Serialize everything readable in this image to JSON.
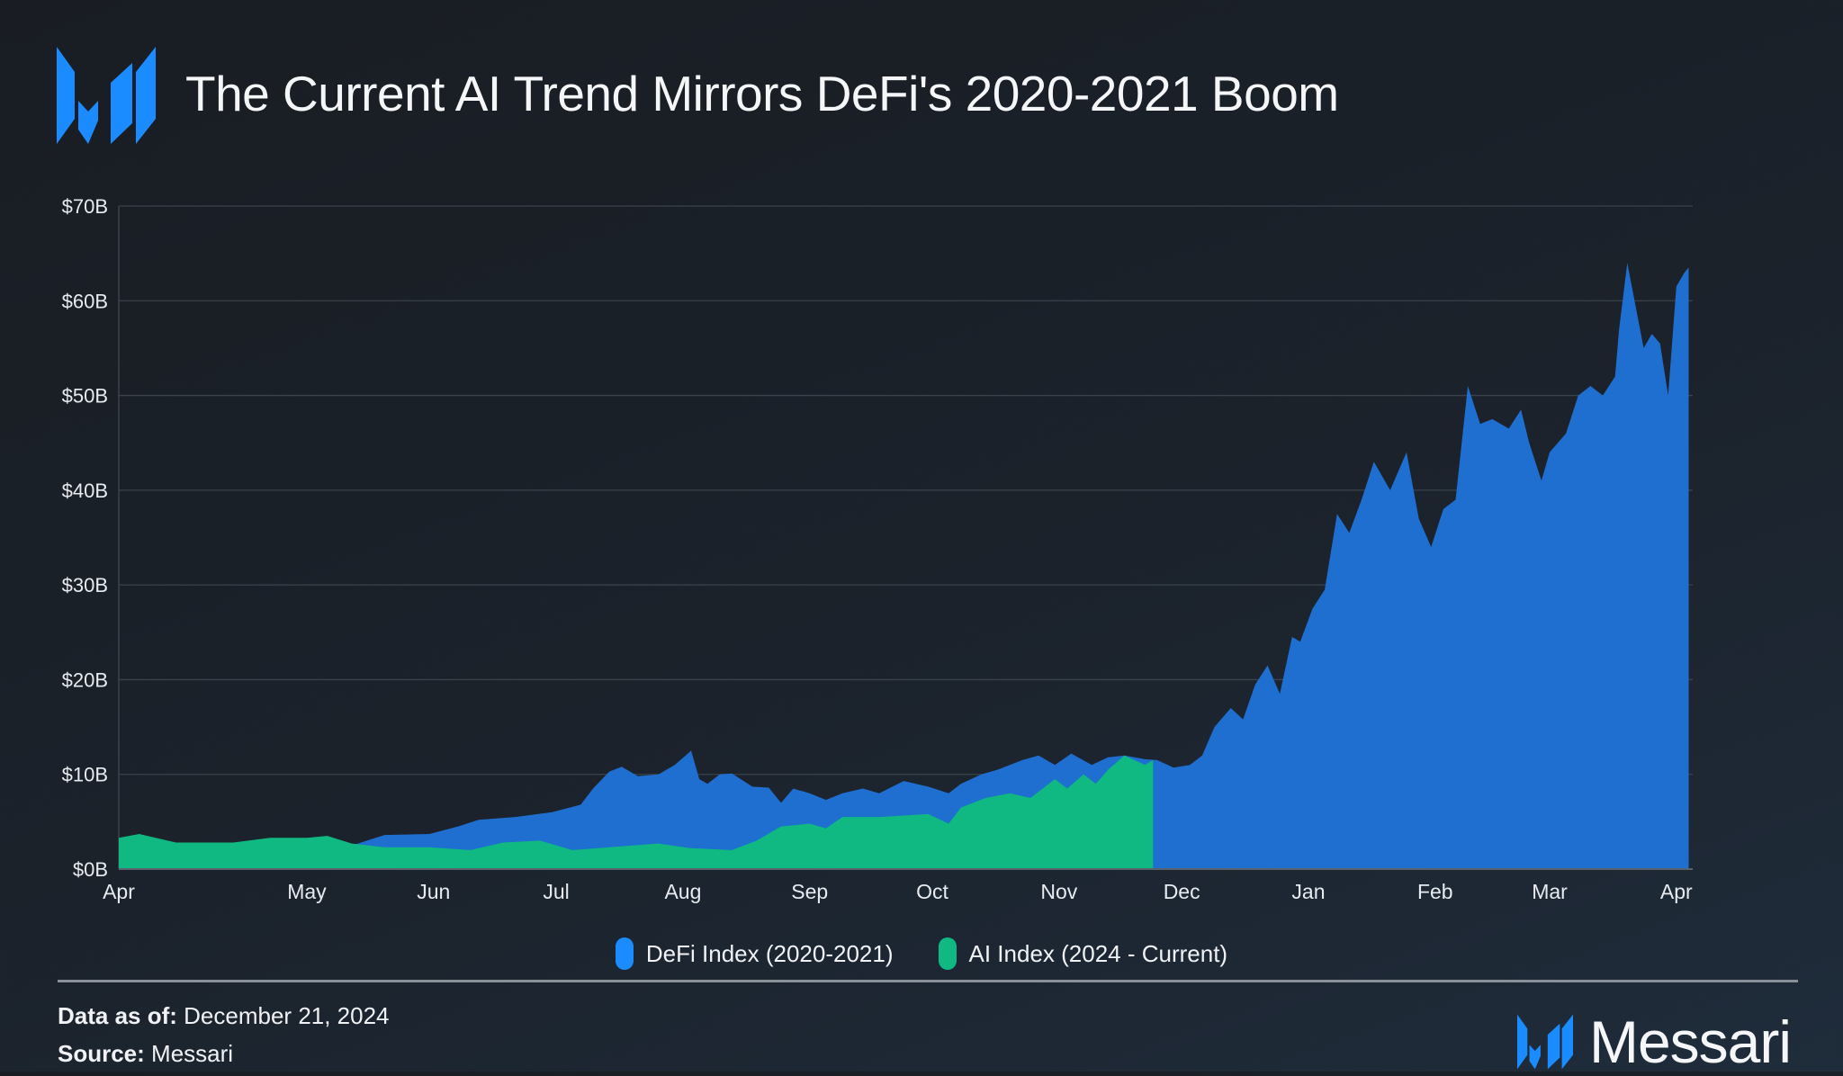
{
  "header": {
    "title": "The Current AI Trend Mirrors DeFi's 2020-2021 Boom",
    "logo_text": "Messari"
  },
  "colors": {
    "defi": "#1e6fd0",
    "ai": "#10b981",
    "legend_defi": "#1a8cff",
    "legend_ai": "#10b981",
    "grid": "#3a424c"
  },
  "chart_data": {
    "type": "area",
    "title": "The Current AI Trend Mirrors DeFi's 2020-2021 Boom",
    "xlabel": "",
    "ylabel": "",
    "xlim": [
      "2020-03-16",
      "2021-04-05"
    ],
    "ylim": [
      0,
      70
    ],
    "grid": true,
    "legend_placement": "bottom",
    "y_ticks": [
      {
        "value": 0,
        "label": "$0B"
      },
      {
        "value": 10,
        "label": "$10B"
      },
      {
        "value": 20,
        "label": "$20B"
      },
      {
        "value": 30,
        "label": "$30B"
      },
      {
        "value": 40,
        "label": "$40B"
      },
      {
        "value": 50,
        "label": "$50B"
      },
      {
        "value": 60,
        "label": "$60B"
      },
      {
        "value": 70,
        "label": "$70B"
      }
    ],
    "x_ticks": [
      {
        "date": "2020-03-16",
        "label": "Apr"
      },
      {
        "date": "2020-05-01",
        "label": "May"
      },
      {
        "date": "2020-06-01",
        "label": "Jun"
      },
      {
        "date": "2020-07-01",
        "label": "Jul"
      },
      {
        "date": "2020-08-01",
        "label": "Aug"
      },
      {
        "date": "2020-09-01",
        "label": "Sep"
      },
      {
        "date": "2020-10-01",
        "label": "Oct"
      },
      {
        "date": "2020-11-01",
        "label": "Nov"
      },
      {
        "date": "2020-12-01",
        "label": "Dec"
      },
      {
        "date": "2021-01-01",
        "label": "Jan"
      },
      {
        "date": "2021-02-01",
        "label": "Feb"
      },
      {
        "date": "2021-03-01",
        "label": "Mar"
      },
      {
        "date": "2021-04-01",
        "label": "Apr"
      }
    ],
    "series": [
      {
        "name": "DeFi Index (2020-2021)",
        "points": [
          [
            "2020-03-16",
            2.3
          ],
          [
            "2020-03-30",
            2.2
          ],
          [
            "2020-04-13",
            2.3
          ],
          [
            "2020-05-01",
            2.4
          ],
          [
            "2020-05-12",
            2.5
          ],
          [
            "2020-05-20",
            3.6
          ],
          [
            "2020-05-31",
            3.7
          ],
          [
            "2020-06-07",
            4.5
          ],
          [
            "2020-06-12",
            5.2
          ],
          [
            "2020-06-21",
            5.5
          ],
          [
            "2020-06-30",
            6.0
          ],
          [
            "2020-07-07",
            6.8
          ],
          [
            "2020-07-10",
            8.5
          ],
          [
            "2020-07-14",
            10.3
          ],
          [
            "2020-07-17",
            10.8
          ],
          [
            "2020-07-21",
            9.8
          ],
          [
            "2020-07-26",
            10.0
          ],
          [
            "2020-07-30",
            11.0
          ],
          [
            "2020-08-03",
            12.5
          ],
          [
            "2020-08-05",
            9.5
          ],
          [
            "2020-08-07",
            9.0
          ],
          [
            "2020-08-10",
            10.0
          ],
          [
            "2020-08-13",
            10.1
          ],
          [
            "2020-08-18",
            8.7
          ],
          [
            "2020-08-22",
            8.6
          ],
          [
            "2020-08-25",
            7.0
          ],
          [
            "2020-08-28",
            8.5
          ],
          [
            "2020-09-01",
            8.0
          ],
          [
            "2020-09-05",
            7.3
          ],
          [
            "2020-09-09",
            8.0
          ],
          [
            "2020-09-14",
            8.5
          ],
          [
            "2020-09-18",
            8.0
          ],
          [
            "2020-09-24",
            9.3
          ],
          [
            "2020-09-30",
            8.7
          ],
          [
            "2020-10-05",
            8.0
          ],
          [
            "2020-10-08",
            9.0
          ],
          [
            "2020-10-13",
            10.0
          ],
          [
            "2020-10-17",
            10.5
          ],
          [
            "2020-10-23",
            11.5
          ],
          [
            "2020-10-27",
            12.0
          ],
          [
            "2020-10-31",
            11.0
          ],
          [
            "2020-11-04",
            12.2
          ],
          [
            "2020-11-09",
            11.0
          ],
          [
            "2020-11-13",
            11.8
          ],
          [
            "2020-11-17",
            12.0
          ],
          [
            "2020-11-22",
            11.6
          ],
          [
            "2020-11-25",
            11.5
          ],
          [
            "2020-11-29",
            10.7
          ],
          [
            "2020-12-03",
            11.0
          ],
          [
            "2020-12-06",
            12.0
          ],
          [
            "2020-12-09",
            15.0
          ],
          [
            "2020-12-13",
            17.0
          ],
          [
            "2020-12-16",
            15.8
          ],
          [
            "2020-12-19",
            19.5
          ],
          [
            "2020-12-22",
            21.5
          ],
          [
            "2020-12-25",
            18.5
          ],
          [
            "2020-12-28",
            24.5
          ],
          [
            "2020-12-30",
            24.0
          ],
          [
            "2021-01-02",
            27.5
          ],
          [
            "2021-01-05",
            29.5
          ],
          [
            "2021-01-08",
            37.5
          ],
          [
            "2021-01-11",
            35.5
          ],
          [
            "2021-01-14",
            39.0
          ],
          [
            "2021-01-17",
            43.0
          ],
          [
            "2021-01-21",
            40.0
          ],
          [
            "2021-01-25",
            44.0
          ],
          [
            "2021-01-28",
            37.0
          ],
          [
            "2021-01-31",
            34.0
          ],
          [
            "2021-02-03",
            38.0
          ],
          [
            "2021-02-06",
            39.0
          ],
          [
            "2021-02-09",
            51.0
          ],
          [
            "2021-02-12",
            47.0
          ],
          [
            "2021-02-15",
            47.5
          ],
          [
            "2021-02-19",
            46.5
          ],
          [
            "2021-02-22",
            48.5
          ],
          [
            "2021-02-24",
            45.0
          ],
          [
            "2021-02-27",
            41.0
          ],
          [
            "2021-03-01",
            44.0
          ],
          [
            "2021-03-05",
            46.0
          ],
          [
            "2021-03-08",
            50.0
          ],
          [
            "2021-03-11",
            51.0
          ],
          [
            "2021-03-14",
            50.0
          ],
          [
            "2021-03-17",
            52.0
          ],
          [
            "2021-03-18",
            57.0
          ],
          [
            "2021-03-20",
            64.0
          ],
          [
            "2021-03-24",
            55.0
          ],
          [
            "2021-03-26",
            56.5
          ],
          [
            "2021-03-28",
            55.5
          ],
          [
            "2021-03-30",
            50.0
          ],
          [
            "2021-04-01",
            61.5
          ],
          [
            "2021-04-03",
            63.0
          ],
          [
            "2021-04-04",
            63.5
          ]
        ]
      },
      {
        "name": "AI Index (2024 - Current)",
        "points": [
          [
            "2020-03-16",
            3.3
          ],
          [
            "2020-03-21",
            3.7
          ],
          [
            "2020-03-30",
            2.8
          ],
          [
            "2020-04-13",
            2.8
          ],
          [
            "2020-04-22",
            3.3
          ],
          [
            "2020-05-01",
            3.3
          ],
          [
            "2020-05-06",
            3.5
          ],
          [
            "2020-05-12",
            2.7
          ],
          [
            "2020-05-20",
            2.3
          ],
          [
            "2020-05-31",
            2.3
          ],
          [
            "2020-06-10",
            2.0
          ],
          [
            "2020-06-18",
            2.8
          ],
          [
            "2020-06-27",
            3.0
          ],
          [
            "2020-07-05",
            2.0
          ],
          [
            "2020-07-14",
            2.3
          ],
          [
            "2020-07-26",
            2.7
          ],
          [
            "2020-08-03",
            2.2
          ],
          [
            "2020-08-13",
            2.0
          ],
          [
            "2020-08-19",
            3.0
          ],
          [
            "2020-08-25",
            4.5
          ],
          [
            "2020-09-01",
            4.8
          ],
          [
            "2020-09-05",
            4.3
          ],
          [
            "2020-09-09",
            5.5
          ],
          [
            "2020-09-18",
            5.5
          ],
          [
            "2020-09-30",
            5.8
          ],
          [
            "2020-10-05",
            4.8
          ],
          [
            "2020-10-08",
            6.5
          ],
          [
            "2020-10-14",
            7.5
          ],
          [
            "2020-10-20",
            8.0
          ],
          [
            "2020-10-25",
            7.5
          ],
          [
            "2020-10-31",
            9.5
          ],
          [
            "2020-11-03",
            8.5
          ],
          [
            "2020-11-07",
            10.0
          ],
          [
            "2020-11-10",
            9.0
          ],
          [
            "2020-11-13",
            10.5
          ],
          [
            "2020-11-17",
            12.0
          ],
          [
            "2020-11-22",
            11.0
          ],
          [
            "2020-11-24",
            11.5
          ]
        ]
      }
    ]
  },
  "legend": [
    {
      "label": "DeFi Index (2020-2021)"
    },
    {
      "label": "AI Index (2024 - Current)"
    }
  ],
  "footer": {
    "data_as_of_label": "Data as of:",
    "data_as_of_value": "December 21, 2024",
    "source_label": "Source:",
    "source_value": "Messari",
    "brand": "Messari"
  }
}
